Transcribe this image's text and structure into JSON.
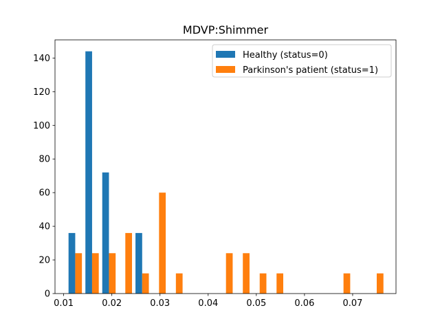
{
  "chart_data": {
    "type": "bar",
    "title": "MDVP:Shimmer",
    "xlabel": "",
    "ylabel": "",
    "xlim": [
      0.0082,
      0.079
    ],
    "ylim": [
      0,
      150.8
    ],
    "xticks": [
      0.01,
      0.02,
      0.03,
      0.04,
      0.05,
      0.06,
      0.07
    ],
    "xtick_labels": [
      "0.01",
      "0.02",
      "0.03",
      "0.04",
      "0.05",
      "0.06",
      "0.07"
    ],
    "yticks": [
      0,
      20,
      40,
      60,
      80,
      100,
      120,
      140
    ],
    "ytick_labels": [
      "0",
      "20",
      "40",
      "60",
      "80",
      "100",
      "120",
      "140"
    ],
    "bin_centers": [
      0.0124,
      0.0159,
      0.0194,
      0.0228,
      0.0263,
      0.0298,
      0.0333,
      0.0368,
      0.0402,
      0.0437,
      0.0472,
      0.0507,
      0.0542,
      0.0576,
      0.0611,
      0.0646,
      0.0681,
      0.0716,
      0.075
    ],
    "bar_width": 0.00139,
    "series": [
      {
        "name": "Healthy (status=0)",
        "color": "#1f77b4",
        "x": [
          0.0124,
          0.0159,
          0.0194,
          0.0228,
          0.0263
        ],
        "values": [
          36,
          144,
          72,
          0,
          36
        ]
      },
      {
        "name": "Parkinson's patient (status=1)",
        "color": "#ff7f0e",
        "x": [
          0.0124,
          0.0159,
          0.0194,
          0.0228,
          0.0263,
          0.0298,
          0.0333,
          0.0368,
          0.0402,
          0.0437,
          0.0472,
          0.0507,
          0.0542,
          0.0576,
          0.0611,
          0.0646,
          0.0681,
          0.0716,
          0.075
        ],
        "values": [
          24,
          24,
          24,
          36,
          12,
          60,
          12,
          0,
          0,
          24,
          24,
          12,
          12,
          0,
          0,
          0,
          12,
          0,
          12
        ]
      }
    ],
    "grid": false,
    "legend_position": "top-right"
  }
}
